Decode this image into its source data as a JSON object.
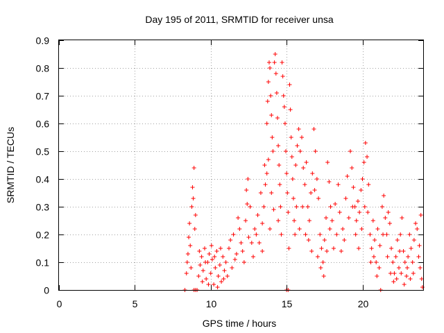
{
  "chart_data": {
    "type": "scatter",
    "title": "Day 195 of 2011, SRMTID for receiver unsa",
    "xlabel": "GPS time / hours",
    "ylabel": "SRMTID / TECUs",
    "xlim": [
      0,
      24
    ],
    "ylim": [
      0,
      0.9
    ],
    "x_ticks": [
      "0",
      "5",
      "10",
      "15",
      "20"
    ],
    "y_ticks": [
      "0",
      "0.1",
      "0.2",
      "0.3",
      "0.4",
      "0.5",
      "0.6",
      "0.7",
      "0.8",
      "0.9"
    ],
    "grid": true,
    "marker": "+",
    "series": [
      {
        "name": "SRMTID",
        "color": "#ff0000",
        "points": [
          [
            8.3,
            0.0
          ],
          [
            8.4,
            0.06
          ],
          [
            8.45,
            0.1
          ],
          [
            8.5,
            0.13
          ],
          [
            8.55,
            0.19
          ],
          [
            8.6,
            0.24
          ],
          [
            8.65,
            0.16
          ],
          [
            8.7,
            0.08
          ],
          [
            8.75,
            0.3
          ],
          [
            8.8,
            0.37
          ],
          [
            8.85,
            0.33
          ],
          [
            8.9,
            0.44
          ],
          [
            8.95,
            0.22
          ],
          [
            9.0,
            0.27
          ],
          [
            9.0,
            0.0
          ],
          [
            9.1,
            0.0
          ],
          [
            8.9,
            0.0
          ],
          [
            9.2,
            0.05
          ],
          [
            9.3,
            0.09
          ],
          [
            9.4,
            0.12
          ],
          [
            9.5,
            0.07
          ],
          [
            9.6,
            0.15
          ],
          [
            9.7,
            0.04
          ],
          [
            9.8,
            0.1
          ],
          [
            9.9,
            0.13
          ],
          [
            10.0,
            0.06
          ],
          [
            10.1,
            0.11
          ],
          [
            10.2,
            0.02
          ],
          [
            10.3,
            0.08
          ],
          [
            10.4,
            0.14
          ],
          [
            10.5,
            0.05
          ],
          [
            10.6,
            0.09
          ],
          [
            10.7,
            0.03
          ],
          [
            10.8,
            0.12
          ],
          [
            10.9,
            0.07
          ],
          [
            9.25,
            0.14
          ],
          [
            9.45,
            0.03
          ],
          [
            9.65,
            0.1
          ],
          [
            9.85,
            0.02
          ],
          [
            10.05,
            0.16
          ],
          [
            10.25,
            0.12
          ],
          [
            10.45,
            0.01
          ],
          [
            10.65,
            0.15
          ],
          [
            10.85,
            0.04
          ],
          [
            11.0,
            0.1
          ],
          [
            11.2,
            0.15
          ],
          [
            11.4,
            0.08
          ],
          [
            11.5,
            0.2
          ],
          [
            11.7,
            0.13
          ],
          [
            11.9,
            0.22
          ],
          [
            12.0,
            0.17
          ],
          [
            12.2,
            0.1
          ],
          [
            12.3,
            0.25
          ],
          [
            12.5,
            0.19
          ],
          [
            12.6,
            0.3
          ],
          [
            12.8,
            0.12
          ],
          [
            12.9,
            0.22
          ],
          [
            11.1,
            0.05
          ],
          [
            11.3,
            0.18
          ],
          [
            11.6,
            0.11
          ],
          [
            11.8,
            0.26
          ],
          [
            12.1,
            0.14
          ],
          [
            12.4,
            0.31
          ],
          [
            12.7,
            0.17
          ],
          [
            12.35,
            0.36
          ],
          [
            12.45,
            0.4
          ],
          [
            13.0,
            0.2
          ],
          [
            13.1,
            0.27
          ],
          [
            13.2,
            0.17
          ],
          [
            13.3,
            0.35
          ],
          [
            13.4,
            0.24
          ],
          [
            13.5,
            0.3
          ],
          [
            13.6,
            0.38
          ],
          [
            13.7,
            0.42
          ],
          [
            13.8,
            0.47
          ],
          [
            13.7,
            0.6
          ],
          [
            13.75,
            0.68
          ],
          [
            13.8,
            0.75
          ],
          [
            13.85,
            0.82
          ],
          [
            13.9,
            0.8
          ],
          [
            13.95,
            0.7
          ],
          [
            14.0,
            0.63
          ],
          [
            14.05,
            0.55
          ],
          [
            14.1,
            0.5
          ],
          [
            14.2,
            0.82
          ],
          [
            14.25,
            0.85
          ],
          [
            14.3,
            0.78
          ],
          [
            14.35,
            0.71
          ],
          [
            14.4,
            0.62
          ],
          [
            14.45,
            0.52
          ],
          [
            14.5,
            0.45
          ],
          [
            14.55,
            0.38
          ],
          [
            14.6,
            0.3
          ],
          [
            14.7,
            0.82
          ],
          [
            14.75,
            0.77
          ],
          [
            14.8,
            0.7
          ],
          [
            14.85,
            0.66
          ],
          [
            14.9,
            0.6
          ],
          [
            14.95,
            0.5
          ],
          [
            15.0,
            0.42
          ],
          [
            15.05,
            0.35
          ],
          [
            15.1,
            0.28
          ],
          [
            15.2,
            0.74
          ],
          [
            15.25,
            0.65
          ],
          [
            15.3,
            0.55
          ],
          [
            15.35,
            0.48
          ],
          [
            15.4,
            0.4
          ],
          [
            15.45,
            0.33
          ],
          [
            15.5,
            0.25
          ],
          [
            15.55,
            0.2
          ],
          [
            13.4,
            0.14
          ],
          [
            13.9,
            0.22
          ],
          [
            14.15,
            0.29
          ],
          [
            14.65,
            0.2
          ],
          [
            15.15,
            0.15
          ],
          [
            13.55,
            0.45
          ],
          [
            14.0,
            0.35
          ],
          [
            14.45,
            0.25
          ],
          [
            15.0,
            0.0
          ],
          [
            15.1,
            0.0
          ],
          [
            15.6,
            0.45
          ],
          [
            15.7,
            0.52
          ],
          [
            15.8,
            0.58
          ],
          [
            15.9,
            0.5
          ],
          [
            16.0,
            0.55
          ],
          [
            16.1,
            0.44
          ],
          [
            16.2,
            0.38
          ],
          [
            16.3,
            0.46
          ],
          [
            16.4,
            0.3
          ],
          [
            16.5,
            0.25
          ],
          [
            16.6,
            0.35
          ],
          [
            16.7,
            0.42
          ],
          [
            16.8,
            0.58
          ],
          [
            16.9,
            0.5
          ],
          [
            15.65,
            0.3
          ],
          [
            15.85,
            0.22
          ],
          [
            16.05,
            0.3
          ],
          [
            16.25,
            0.2
          ],
          [
            16.45,
            0.18
          ],
          [
            16.65,
            0.14
          ],
          [
            16.85,
            0.36
          ],
          [
            17.0,
            0.4
          ],
          [
            17.1,
            0.33
          ],
          [
            17.2,
            0.2
          ],
          [
            17.3,
            0.15
          ],
          [
            17.4,
            0.1
          ],
          [
            17.5,
            0.18
          ],
          [
            17.6,
            0.26
          ],
          [
            17.7,
            0.46
          ],
          [
            17.8,
            0.39
          ],
          [
            17.9,
            0.3
          ],
          [
            17.05,
            0.12
          ],
          [
            17.25,
            0.08
          ],
          [
            17.45,
            0.05
          ],
          [
            17.65,
            0.14
          ],
          [
            17.85,
            0.22
          ],
          [
            18.0,
            0.25
          ],
          [
            18.2,
            0.31
          ],
          [
            18.4,
            0.38
          ],
          [
            18.5,
            0.28
          ],
          [
            18.7,
            0.22
          ],
          [
            18.9,
            0.33
          ],
          [
            19.0,
            0.41
          ],
          [
            19.2,
            0.5
          ],
          [
            19.3,
            0.44
          ],
          [
            19.4,
            0.37
          ],
          [
            18.1,
            0.15
          ],
          [
            18.3,
            0.2
          ],
          [
            18.6,
            0.14
          ],
          [
            18.8,
            0.18
          ],
          [
            19.1,
            0.26
          ],
          [
            19.35,
            0.3
          ],
          [
            19.5,
            0.3
          ],
          [
            19.6,
            0.25
          ],
          [
            19.7,
            0.32
          ],
          [
            19.8,
            0.28
          ],
          [
            19.9,
            0.36
          ],
          [
            20.0,
            0.4
          ],
          [
            20.1,
            0.46
          ],
          [
            20.2,
            0.53
          ],
          [
            20.3,
            0.48
          ],
          [
            20.4,
            0.38
          ],
          [
            19.55,
            0.2
          ],
          [
            19.75,
            0.15
          ],
          [
            19.95,
            0.22
          ],
          [
            20.15,
            0.3
          ],
          [
            20.35,
            0.28
          ],
          [
            20.5,
            0.2
          ],
          [
            20.6,
            0.15
          ],
          [
            20.7,
            0.25
          ],
          [
            20.8,
            0.18
          ],
          [
            20.9,
            0.1
          ],
          [
            21.0,
            0.22
          ],
          [
            21.1,
            0.08
          ],
          [
            21.2,
            0.0
          ],
          [
            21.3,
            0.3
          ],
          [
            21.4,
            0.34
          ],
          [
            21.5,
            0.26
          ],
          [
            20.55,
            0.1
          ],
          [
            20.75,
            0.12
          ],
          [
            20.95,
            0.05
          ],
          [
            21.15,
            0.16
          ],
          [
            21.35,
            0.2
          ],
          [
            21.6,
            0.2
          ],
          [
            21.7,
            0.28
          ],
          [
            21.8,
            0.24
          ],
          [
            21.9,
            0.15
          ],
          [
            22.0,
            0.1
          ],
          [
            22.1,
            0.06
          ],
          [
            22.2,
            0.12
          ],
          [
            22.3,
            0.18
          ],
          [
            22.4,
            0.08
          ],
          [
            21.65,
            0.12
          ],
          [
            21.85,
            0.06
          ],
          [
            22.05,
            0.03
          ],
          [
            22.25,
            0.04
          ],
          [
            22.45,
            0.14
          ],
          [
            22.5,
            0.2
          ],
          [
            22.6,
            0.26
          ],
          [
            22.7,
            0.14
          ],
          [
            22.8,
            0.1
          ],
          [
            22.9,
            0.05
          ],
          [
            23.0,
            0.12
          ],
          [
            23.1,
            0.2
          ],
          [
            23.2,
            0.15
          ],
          [
            23.3,
            0.1
          ],
          [
            23.4,
            0.18
          ],
          [
            22.55,
            0.06
          ],
          [
            22.75,
            0.02
          ],
          [
            22.95,
            0.08
          ],
          [
            23.15,
            0.04
          ],
          [
            23.35,
            0.06
          ],
          [
            23.5,
            0.24
          ],
          [
            23.6,
            0.22
          ],
          [
            23.7,
            0.12
          ],
          [
            23.8,
            0.08
          ],
          [
            23.85,
            0.27
          ],
          [
            23.9,
            0.04
          ],
          [
            23.95,
            0.01
          ],
          [
            23.75,
            0.16
          ]
        ]
      }
    ]
  }
}
